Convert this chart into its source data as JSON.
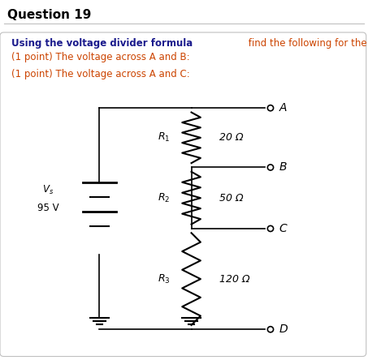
{
  "title": "Question 19",
  "bg_color": "#ffffff",
  "border_color": "#c0c0c0",
  "line1_bold": "Using the voltage divider formula",
  "line1_normal": " find the following for the circuit below:",
  "line1_bold_color": "#1a1a8c",
  "line1_normal_color": "#cc4400",
  "line2": "(1 point) The voltage across A and B:",
  "line2_prefix_color": "#cc4400",
  "line3": "(1 point) The voltage across A and C:",
  "line3_prefix_color": "#cc4400",
  "vs_label": "$V_s$",
  "vs_value": "95 V",
  "r1_label": "$R_1$",
  "r1_value": "20 Ω",
  "r2_label": "$R_2$",
  "r2_value": "50 Ω",
  "r3_label": "$R_3$",
  "r3_value": "120 Ω",
  "node_A": "$A$",
  "node_B": "$B$",
  "node_C": "$C$",
  "node_D": "$D$",
  "figsize": [
    4.53,
    4.44
  ],
  "dpi": 100
}
